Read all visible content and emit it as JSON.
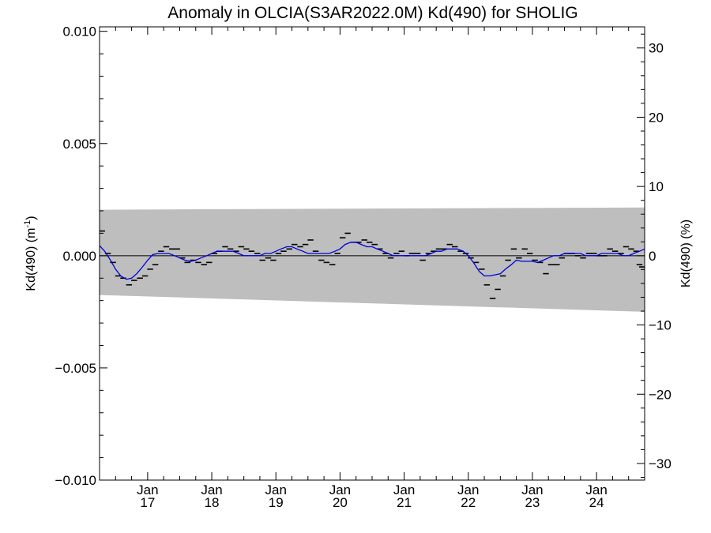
{
  "chart_data": {
    "type": "line",
    "title": "Anomaly in OLCIA(S3AR2022.0M) Kd(490) for SHOLIG",
    "ylabel_left": "Kd(490) (m",
    "ylabel_left_sup": "-1",
    "ylabel_left_close": ")",
    "ylabel_right": "Kd(490) (%)",
    "xlim": [
      2016.25,
      2024.75
    ],
    "ylim_left": [
      -0.01,
      0.0102
    ],
    "ylim_right": [
      -32.4,
      33.05
    ],
    "left_ticks": [
      {
        "value": 0.01,
        "label": "0.010"
      },
      {
        "value": 0.005,
        "label": "0.005"
      },
      {
        "value": 0.0,
        "label": "0.000"
      },
      {
        "value": -0.005,
        "label": "−0.005"
      },
      {
        "value": -0.01,
        "label": "−0.010"
      }
    ],
    "right_ticks": [
      {
        "value": 30,
        "label": "30"
      },
      {
        "value": 20,
        "label": "20"
      },
      {
        "value": 10,
        "label": "10"
      },
      {
        "value": 0,
        "label": "0"
      },
      {
        "value": -10,
        "label": "−10"
      },
      {
        "value": -20,
        "label": "−20"
      },
      {
        "value": -30,
        "label": "−30"
      }
    ],
    "x_ticks": [
      {
        "value": 2017,
        "month": "Jan",
        "year": "17"
      },
      {
        "value": 2018,
        "month": "Jan",
        "year": "18"
      },
      {
        "value": 2019,
        "month": "Jan",
        "year": "19"
      },
      {
        "value": 2020,
        "month": "Jan",
        "year": "20"
      },
      {
        "value": 2021,
        "month": "Jan",
        "year": "21"
      },
      {
        "value": 2022,
        "month": "Jan",
        "year": "22"
      },
      {
        "value": 2023,
        "month": "Jan",
        "year": "23"
      },
      {
        "value": 2024,
        "month": "Jan",
        "year": "24"
      }
    ],
    "envelope": {
      "x": [
        2016.25,
        2024.75
      ],
      "upper": [
        0.00205,
        0.00215
      ],
      "lower": [
        -0.00175,
        -0.0025
      ],
      "color": "#bebebe"
    },
    "monthly_points": [
      [
        2016.29,
        0.0011
      ],
      [
        2016.38,
        0.0001
      ],
      [
        2016.46,
        -0.0003
      ],
      [
        2016.54,
        -0.0009
      ],
      [
        2016.62,
        -0.001
      ],
      [
        2016.71,
        -0.0013
      ],
      [
        2016.79,
        -0.0011
      ],
      [
        2016.88,
        -0.001
      ],
      [
        2016.96,
        -0.0009
      ],
      [
        2017.04,
        -0.0006
      ],
      [
        2017.12,
        -0.0004
      ],
      [
        2017.21,
        0.0002
      ],
      [
        2017.29,
        0.0004
      ],
      [
        2017.38,
        0.0003
      ],
      [
        2017.46,
        0.0003
      ],
      [
        2017.54,
        -0.0001
      ],
      [
        2017.62,
        -0.0003
      ],
      [
        2017.71,
        -0.0002
      ],
      [
        2017.79,
        -0.0003
      ],
      [
        2017.88,
        -0.0004
      ],
      [
        2017.96,
        -0.0003
      ],
      [
        2018.04,
        0.0001
      ],
      [
        2018.12,
        0.0002
      ],
      [
        2018.21,
        0.0004
      ],
      [
        2018.29,
        0.0003
      ],
      [
        2018.38,
        0.0002
      ],
      [
        2018.46,
        0.0004
      ],
      [
        2018.54,
        0.0003
      ],
      [
        2018.62,
        0.0002
      ],
      [
        2018.71,
        0.0001
      ],
      [
        2018.79,
        -0.0002
      ],
      [
        2018.88,
        -0.0001
      ],
      [
        2018.96,
        -0.0002
      ],
      [
        2019.04,
        0.0001
      ],
      [
        2019.12,
        0.0002
      ],
      [
        2019.21,
        0.0003
      ],
      [
        2019.29,
        0.0005
      ],
      [
        2019.38,
        0.0004
      ],
      [
        2019.46,
        0.0005
      ],
      [
        2019.54,
        0.0007
      ],
      [
        2019.62,
        0.0002
      ],
      [
        2019.71,
        -0.0002
      ],
      [
        2019.79,
        -0.0003
      ],
      [
        2019.88,
        -0.0004
      ],
      [
        2019.96,
        0.0001
      ],
      [
        2020.04,
        0.0008
      ],
      [
        2020.12,
        0.001
      ],
      [
        2020.21,
        0.0006
      ],
      [
        2020.29,
        0.0006
      ],
      [
        2020.38,
        0.0007
      ],
      [
        2020.46,
        0.0006
      ],
      [
        2020.54,
        0.0005
      ],
      [
        2020.62,
        0.0003
      ],
      [
        2020.71,
        0.0001
      ],
      [
        2020.79,
        -0.0001
      ],
      [
        2020.88,
        0.0001
      ],
      [
        2020.96,
        0.0002
      ],
      [
        2021.04,
        0.0
      ],
      [
        2021.12,
        0.0001
      ],
      [
        2021.21,
        0.0001
      ],
      [
        2021.29,
        -0.0002
      ],
      [
        2021.38,
        0.0001
      ],
      [
        2021.46,
        0.0002
      ],
      [
        2021.54,
        0.0003
      ],
      [
        2021.62,
        0.0003
      ],
      [
        2021.71,
        0.0005
      ],
      [
        2021.79,
        0.0004
      ],
      [
        2021.88,
        0.0002
      ],
      [
        2021.96,
        0.0001
      ],
      [
        2022.04,
        -0.0001
      ],
      [
        2022.12,
        -0.0003
      ],
      [
        2022.21,
        -0.0006
      ],
      [
        2022.29,
        -0.0013
      ],
      [
        2022.38,
        -0.0019
      ],
      [
        2022.46,
        -0.0015
      ],
      [
        2022.54,
        -0.0009
      ],
      [
        2022.62,
        -0.0002
      ],
      [
        2022.71,
        0.0003
      ],
      [
        2022.79,
        -0.0001
      ],
      [
        2022.88,
        0.0003
      ],
      [
        2022.96,
        0.0001
      ],
      [
        2023.04,
        -0.0002
      ],
      [
        2023.12,
        -0.0003
      ],
      [
        2023.21,
        -0.0008
      ],
      [
        2023.29,
        -0.0004
      ],
      [
        2023.38,
        -0.0004
      ],
      [
        2023.46,
        -0.0001
      ],
      [
        2023.54,
        0.0001
      ],
      [
        2023.62,
        0.0001
      ],
      [
        2023.71,
        0.0
      ],
      [
        2023.79,
        -0.0001
      ],
      [
        2023.88,
        0.0001
      ],
      [
        2023.96,
        0.0001
      ],
      [
        2024.04,
        0.0
      ],
      [
        2024.12,
        0.0
      ],
      [
        2024.21,
        0.0003
      ],
      [
        2024.29,
        0.0002
      ],
      [
        2024.38,
        0.0001
      ],
      [
        2024.46,
        0.0004
      ],
      [
        2024.54,
        0.0003
      ],
      [
        2024.62,
        0.0002
      ],
      [
        2024.67,
        -0.0004
      ],
      [
        2024.71,
        -0.0005
      ]
    ],
    "smooth_line": {
      "color": "#0000dd",
      "points": [
        [
          2016.25,
          0.00045
        ],
        [
          2016.33,
          0.0002
        ],
        [
          2016.42,
          -0.0002
        ],
        [
          2016.5,
          -0.0006
        ],
        [
          2016.58,
          -0.0009
        ],
        [
          2016.67,
          -0.00105
        ],
        [
          2016.75,
          -0.001
        ],
        [
          2016.83,
          -0.0008
        ],
        [
          2016.92,
          -0.0005
        ],
        [
          2017.0,
          -0.0002
        ],
        [
          2017.08,
          5e-05
        ],
        [
          2017.17,
          0.0001
        ],
        [
          2017.25,
          0.0001
        ],
        [
          2017.33,
          0.0001
        ],
        [
          2017.42,
          0.0
        ],
        [
          2017.5,
          -0.0001
        ],
        [
          2017.58,
          -0.0002
        ],
        [
          2017.67,
          -0.00025
        ],
        [
          2017.75,
          -0.0002
        ],
        [
          2017.83,
          -0.0001
        ],
        [
          2017.92,
          0.0
        ],
        [
          2018.0,
          0.0001
        ],
        [
          2018.08,
          0.0002
        ],
        [
          2018.17,
          0.0002
        ],
        [
          2018.25,
          0.0002
        ],
        [
          2018.33,
          0.0002
        ],
        [
          2018.42,
          0.0001
        ],
        [
          2018.5,
          0.0
        ],
        [
          2018.58,
          0.0
        ],
        [
          2018.67,
          0.0
        ],
        [
          2018.75,
          0.0
        ],
        [
          2018.83,
          0.0001
        ],
        [
          2018.92,
          0.0001
        ],
        [
          2019.0,
          0.0002
        ],
        [
          2019.08,
          0.0003
        ],
        [
          2019.17,
          0.0004
        ],
        [
          2019.25,
          0.0004
        ],
        [
          2019.33,
          0.0003
        ],
        [
          2019.42,
          0.0002
        ],
        [
          2019.5,
          0.0001
        ],
        [
          2019.58,
          0.0001
        ],
        [
          2019.67,
          0.0001
        ],
        [
          2019.75,
          0.0001
        ],
        [
          2019.83,
          0.0001
        ],
        [
          2019.92,
          0.0002
        ],
        [
          2020.0,
          0.0003
        ],
        [
          2020.08,
          0.0005
        ],
        [
          2020.17,
          0.0006
        ],
        [
          2020.25,
          0.0006
        ],
        [
          2020.33,
          0.0005
        ],
        [
          2020.42,
          0.0004
        ],
        [
          2020.5,
          0.0004
        ],
        [
          2020.58,
          0.0003
        ],
        [
          2020.67,
          0.0002
        ],
        [
          2020.75,
          0.0001
        ],
        [
          2020.83,
          0.0
        ],
        [
          2020.92,
          0.0
        ],
        [
          2021.0,
          0.0
        ],
        [
          2021.08,
          0.0
        ],
        [
          2021.17,
          0.0
        ],
        [
          2021.25,
          0.0
        ],
        [
          2021.33,
          0.0
        ],
        [
          2021.42,
          0.0001
        ],
        [
          2021.5,
          0.0002
        ],
        [
          2021.58,
          0.0002
        ],
        [
          2021.67,
          0.0003
        ],
        [
          2021.75,
          0.0003
        ],
        [
          2021.83,
          0.0003
        ],
        [
          2021.92,
          0.0002
        ],
        [
          2022.0,
          0.0
        ],
        [
          2022.08,
          -0.0003
        ],
        [
          2022.17,
          -0.0007
        ],
        [
          2022.25,
          -0.0009
        ],
        [
          2022.33,
          -0.0009
        ],
        [
          2022.42,
          -0.00085
        ],
        [
          2022.5,
          -0.0008
        ],
        [
          2022.58,
          -0.0006
        ],
        [
          2022.67,
          -0.0004
        ],
        [
          2022.75,
          -0.0002
        ],
        [
          2022.83,
          -0.00025
        ],
        [
          2022.92,
          -0.00025
        ],
        [
          2023.0,
          -0.00025
        ],
        [
          2023.08,
          -0.0003
        ],
        [
          2023.17,
          -0.0002
        ],
        [
          2023.25,
          -0.0001
        ],
        [
          2023.33,
          0.0
        ],
        [
          2023.42,
          0.0
        ],
        [
          2023.5,
          0.0001
        ],
        [
          2023.58,
          0.0001
        ],
        [
          2023.67,
          0.0001
        ],
        [
          2023.75,
          0.0001
        ],
        [
          2023.83,
          0.0
        ],
        [
          2023.92,
          0.0
        ],
        [
          2024.0,
          0.0
        ],
        [
          2024.08,
          0.0001
        ],
        [
          2024.17,
          0.0001
        ],
        [
          2024.25,
          0.0001
        ],
        [
          2024.33,
          0.0001
        ],
        [
          2024.42,
          0.0
        ],
        [
          2024.5,
          0.0
        ],
        [
          2024.58,
          0.0001
        ],
        [
          2024.67,
          0.0002
        ],
        [
          2024.75,
          0.0003
        ]
      ]
    },
    "zero_line": true,
    "grid": false
  }
}
